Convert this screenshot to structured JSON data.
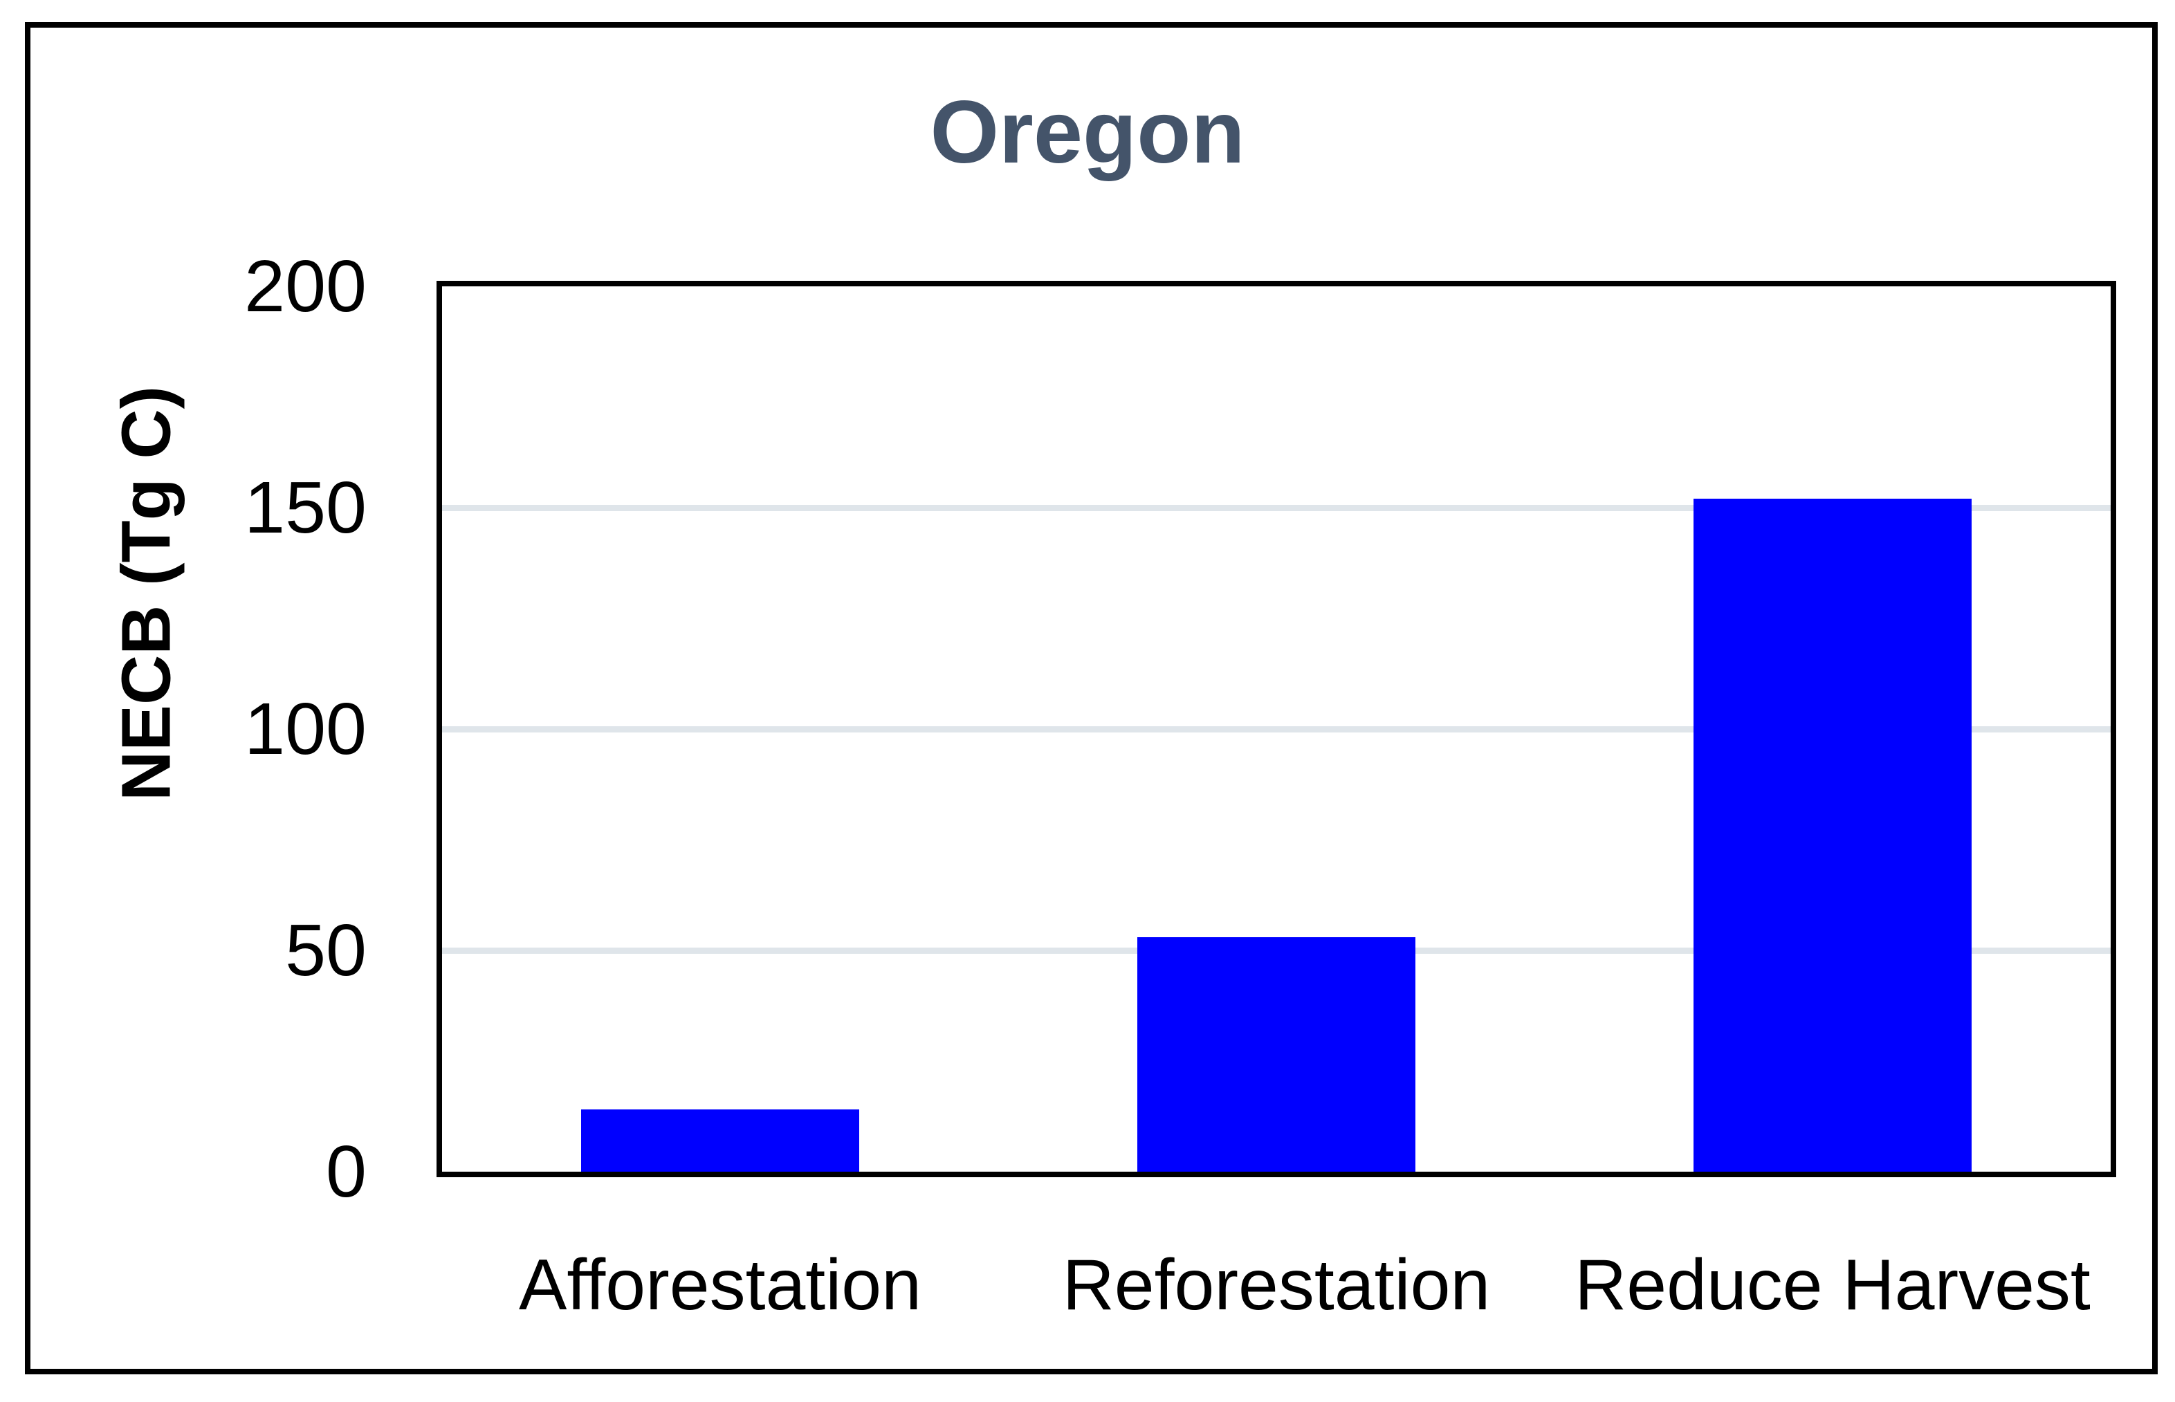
{
  "figure": {
    "background_color": "#ffffff",
    "border_color": "#000000"
  },
  "chart_data": {
    "type": "bar",
    "title": "Oregon",
    "title_color": "#44546A",
    "categories": [
      "Afforestation",
      "Reforestation",
      "Reduce Harvest"
    ],
    "values": [
      14,
      53,
      152
    ],
    "xlabel": "",
    "ylabel": "NECB (Tg C)",
    "ylim": [
      0,
      200
    ],
    "yticks": [
      0,
      50,
      100,
      150,
      200
    ],
    "bar_color": "#0000FF",
    "gridline_color": "#DFE5EA",
    "axis_color": "#000000",
    "grid": true,
    "legend_position": "none"
  }
}
